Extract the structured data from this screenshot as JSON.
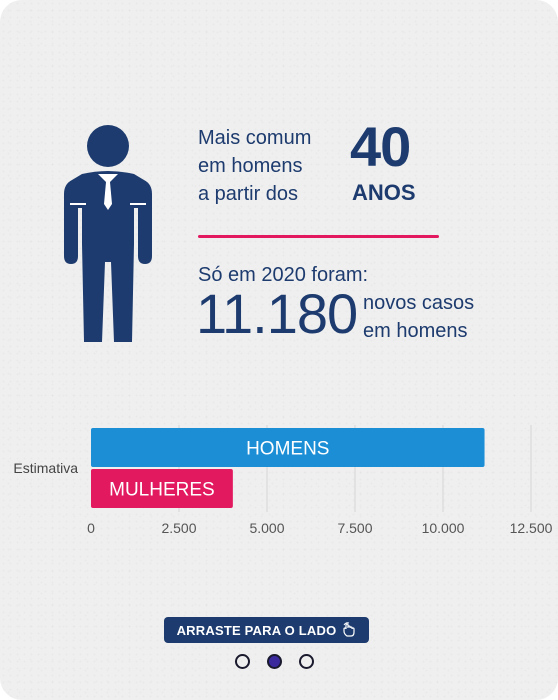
{
  "colors": {
    "navy": "#1d3b6e",
    "pink": "#e2195f",
    "blue": "#1b8ed6",
    "active_dot": "#3a2a9e"
  },
  "headline": {
    "common_text": "Mais comum\nem homens\na partir dos",
    "age_number": "40",
    "age_unit": "ANOS"
  },
  "stats": {
    "year_text": "Só em 2020 foram:",
    "cases_number": "11.180",
    "cases_text": "novos casos\nem homens"
  },
  "chart_data": {
    "type": "bar",
    "orientation": "horizontal",
    "categories": [
      "Estimativa"
    ],
    "series": [
      {
        "name": "HOMENS",
        "values": [
          11180
        ],
        "color": "#1b8ed6"
      },
      {
        "name": "MULHERES",
        "values": [
          4030
        ],
        "color": "#e2195f"
      }
    ],
    "xlim": [
      0,
      12500
    ],
    "x_ticks": [
      "0",
      "2.500",
      "5.000",
      "7.500",
      "10.000",
      "12.500"
    ],
    "x_tick_values": [
      0,
      2500,
      5000,
      7500,
      10000,
      12500
    ],
    "grid": true
  },
  "footer": {
    "swipe_label": "ARRASTE PARA O LADO",
    "swipe_icon": "hand-swipe-icon",
    "pagination": {
      "total": 3,
      "active_index": 1
    }
  }
}
